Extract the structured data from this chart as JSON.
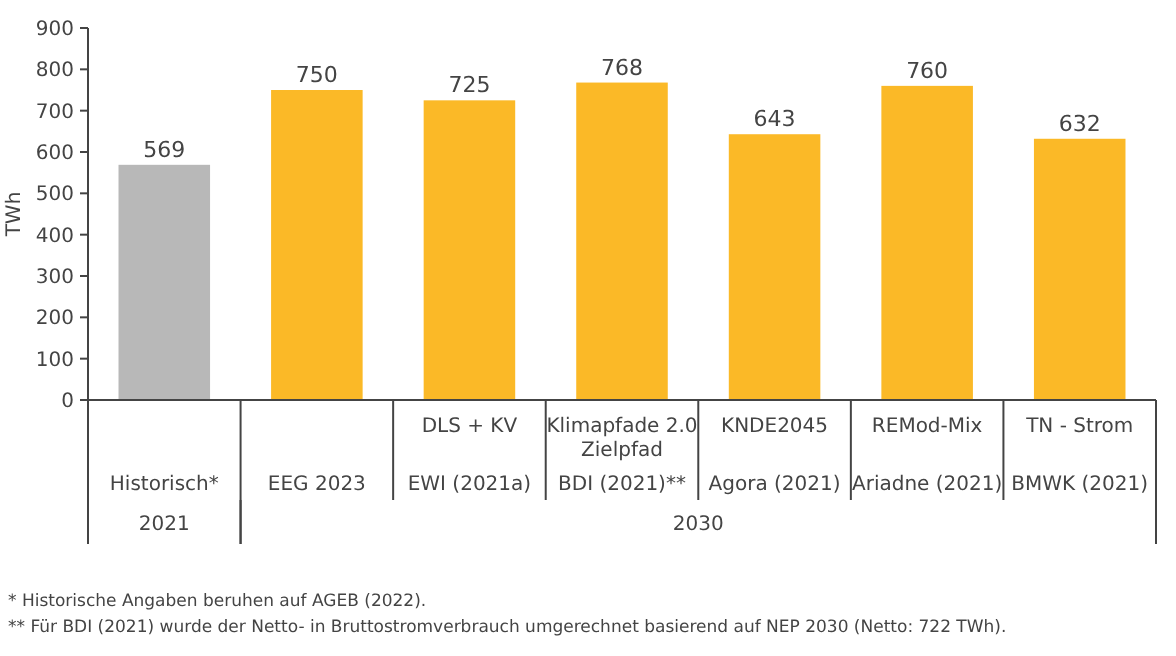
{
  "chart_data": {
    "type": "bar",
    "ylabel": "TWh",
    "categories": [
      "Historisch*",
      "EEG 2023",
      "DLS + KV\nEWI (2021a)",
      "Klimapfade 2.0\nZielpfad\nBDI (2021)**",
      "KNDE2045\nAgora (2021)",
      "REMod-Mix\nAriadne (2021)",
      "TN - Strom\nBMWK (2021)"
    ],
    "values": [
      569,
      750,
      725,
      768,
      643,
      760,
      632
    ],
    "colors": [
      "#b8b8b8",
      "#fbb927",
      "#fbb927",
      "#fbb927",
      "#fbb927",
      "#fbb927",
      "#fbb927"
    ],
    "ylim": [
      0,
      900
    ],
    "yticks": [
      0,
      100,
      200,
      300,
      400,
      500,
      600,
      700,
      800,
      900
    ],
    "data_labels": true,
    "annotations": [
      "2021",
      "2030",
      "* Historische Angaben beruhen auf AGEB (2022).",
      "** Für BDI (2021) wurde der Netto- in Bruttostromverbrauch umgerechnet basierend auf NEP 2030 (Netto: 722 TWh)."
    ]
  }
}
